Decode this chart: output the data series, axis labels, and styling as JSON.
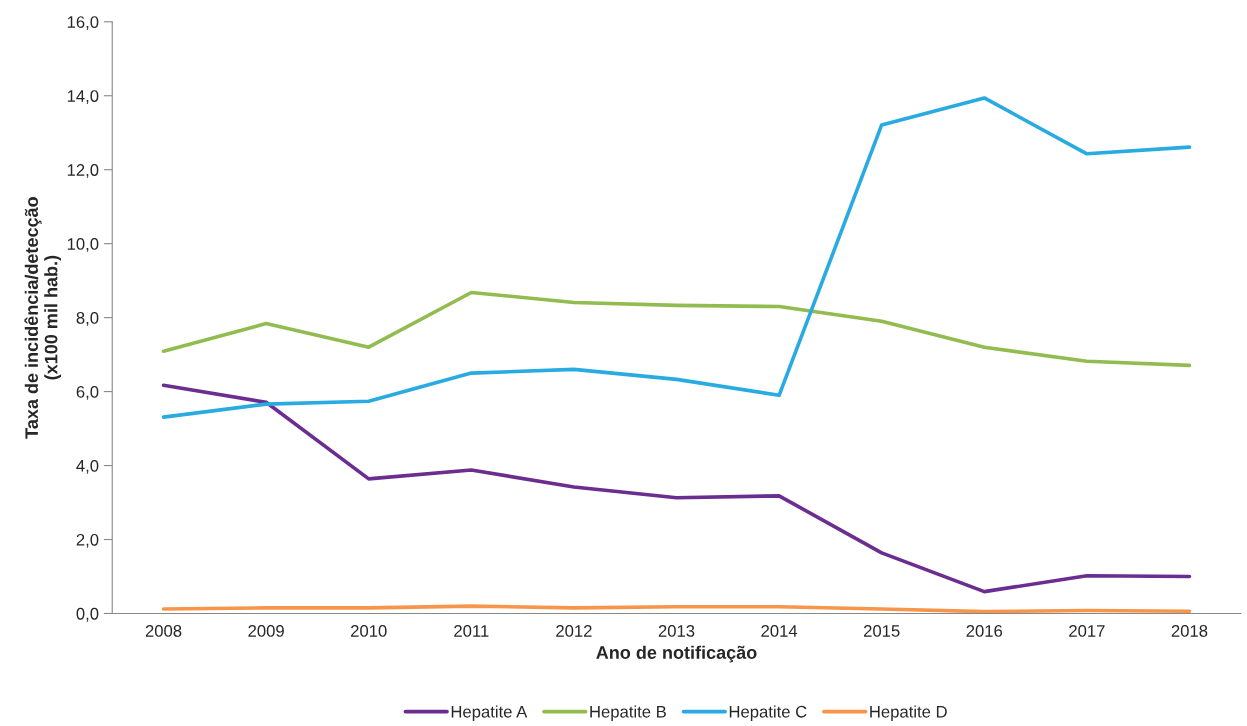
{
  "chart_data": {
    "type": "line",
    "xlabel": "Ano de notificação",
    "ylabel": "Taxa de incidência/detecção\n(x100 mil hab.)",
    "categories": [
      "2008",
      "2009",
      "2010",
      "2011",
      "2012",
      "2013",
      "2014",
      "2015",
      "2016",
      "2017",
      "2018"
    ],
    "series": [
      {
        "name": "Hepatite A",
        "color": "#6b2d90",
        "values": [
          6.17,
          5.71,
          3.64,
          3.88,
          3.42,
          3.13,
          3.18,
          1.64,
          0.59,
          1.02,
          1.0
        ]
      },
      {
        "name": "Hepatite B",
        "color": "#92bc50",
        "values": [
          7.09,
          7.84,
          7.2,
          8.68,
          8.41,
          8.33,
          8.3,
          7.9,
          7.2,
          6.82,
          6.71
        ]
      },
      {
        "name": "Hepatite C",
        "color": "#29abe2",
        "values": [
          5.31,
          5.66,
          5.74,
          6.5,
          6.6,
          6.33,
          5.9,
          13.21,
          13.94,
          12.43,
          12.61
        ]
      },
      {
        "name": "Hepatite D",
        "color": "#f7964a",
        "values": [
          0.12,
          0.15,
          0.15,
          0.2,
          0.15,
          0.18,
          0.18,
          0.12,
          0.05,
          0.08,
          0.06
        ]
      }
    ],
    "ylim": [
      0,
      16
    ],
    "yticks": [
      {
        "value": 0,
        "label": "0,0"
      },
      {
        "value": 2,
        "label": "2,0"
      },
      {
        "value": 4,
        "label": "4,0"
      },
      {
        "value": 6,
        "label": "6,0"
      },
      {
        "value": 8,
        "label": "8,0"
      },
      {
        "value": 10,
        "label": "10,0"
      },
      {
        "value": 12,
        "label": "12,0"
      },
      {
        "value": 14,
        "label": "14,0"
      },
      {
        "value": 16,
        "label": "16,0"
      }
    ],
    "grid": false,
    "legend": "bottom",
    "marker": "none",
    "line_style": "solid"
  }
}
